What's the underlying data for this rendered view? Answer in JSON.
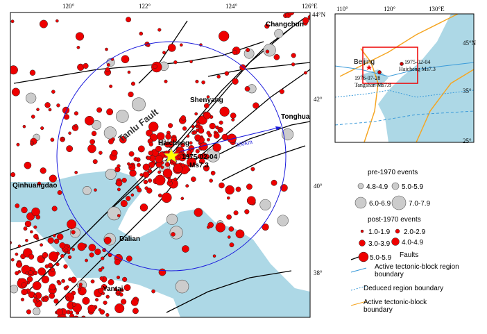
{
  "map": {
    "lon_labels": [
      "120°",
      "122°",
      "124°",
      "126°E"
    ],
    "lat_labels": [
      "44°N",
      "42°",
      "40°",
      "38°"
    ],
    "places": [
      "Changchun",
      "Shenyang",
      "Tonghua",
      "Haicheng",
      "Qinhuangdao",
      "Dalian",
      "Yantai"
    ],
    "fault_label": "Tanlu Fault",
    "radius_label": "300km",
    "event_date": "1975-02-04",
    "event_mag": "Ms7.3"
  },
  "inset": {
    "lon_labels": [
      "110°",
      "120°",
      "130°E"
    ],
    "lat_labels": [
      "45°N",
      "35°",
      "25°"
    ],
    "city": "Beijing",
    "haicheng": [
      "1975-02-04",
      "Haicheng Ms7.3"
    ],
    "tangshan": [
      "1976-07-28",
      "Tangshan Ms7.8"
    ]
  },
  "legend": {
    "pre_title": "pre-1970 events",
    "pre_items": [
      "4.8-4.9",
      "5.0-5.9",
      "6.0-6.9",
      "7.0-7.9"
    ],
    "post_title": "post-1970 events",
    "post_items": [
      "1.0-1.9",
      "2.0-2.9",
      "3.0-3.9",
      "4.0-4.9",
      "5.0-5.9"
    ],
    "faults": "Faults",
    "lines": [
      "Active tectonic-block region boundary",
      "Deduced region boundary",
      "Active tectonic-block boundary"
    ]
  }
}
